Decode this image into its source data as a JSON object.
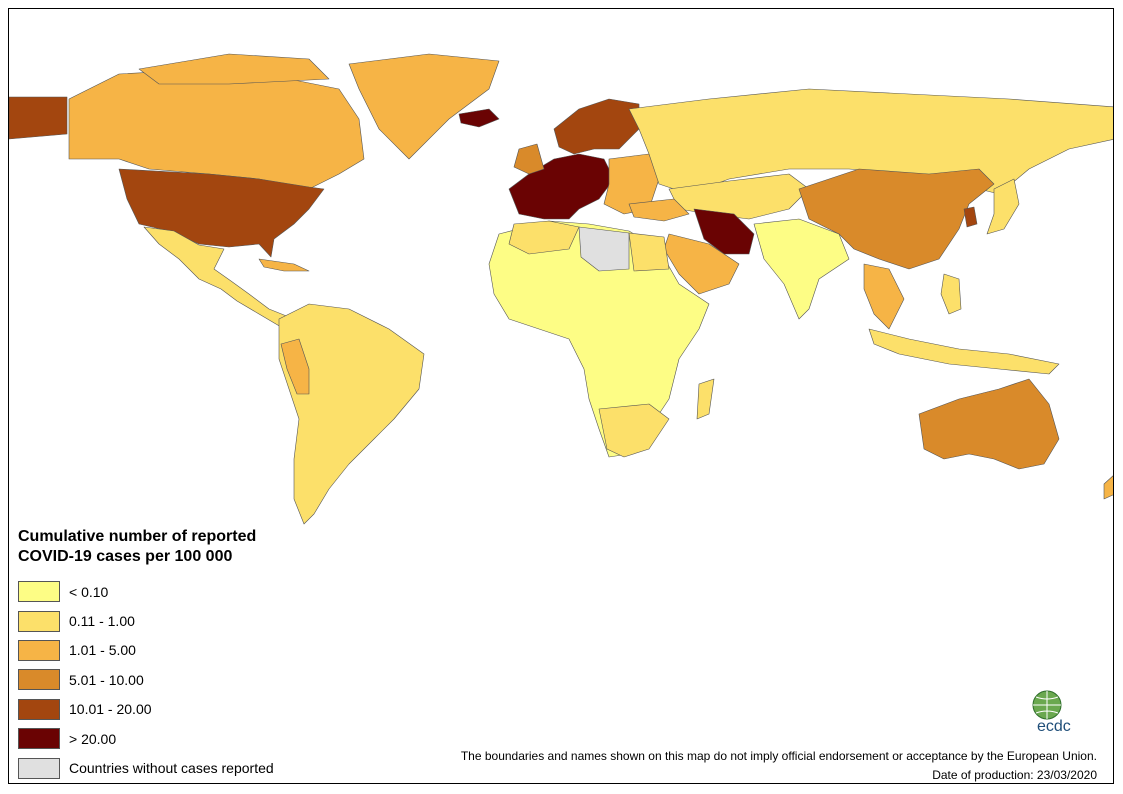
{
  "legend": {
    "title_line1": "Cumulative number of reported",
    "title_line2": "COVID-19 cases per 100 000",
    "items": [
      {
        "label": "< 0.10",
        "color": "#fdfd85"
      },
      {
        "label": "0.11 - 1.00",
        "color": "#fce06a"
      },
      {
        "label": "1.01 - 5.00",
        "color": "#f6b446"
      },
      {
        "label": "5.01 - 10.00",
        "color": "#d98a2a"
      },
      {
        "label": "10.01 - 20.00",
        "color": "#a3460f"
      },
      {
        "label": "> 20.00",
        "color": "#6a0303"
      },
      {
        "label": "Countries without cases reported",
        "color": "#e0e0e0"
      }
    ]
  },
  "footer": {
    "disclaimer": "The boundaries and names shown on this map do not imply official endorsement or acceptance by the European Union.",
    "date": "Date of production: 23/03/2020"
  },
  "logo": {
    "text": "ecdc",
    "icon": "globe-icon"
  },
  "colors": {
    "border": "#555555",
    "background": "#ffffff"
  }
}
